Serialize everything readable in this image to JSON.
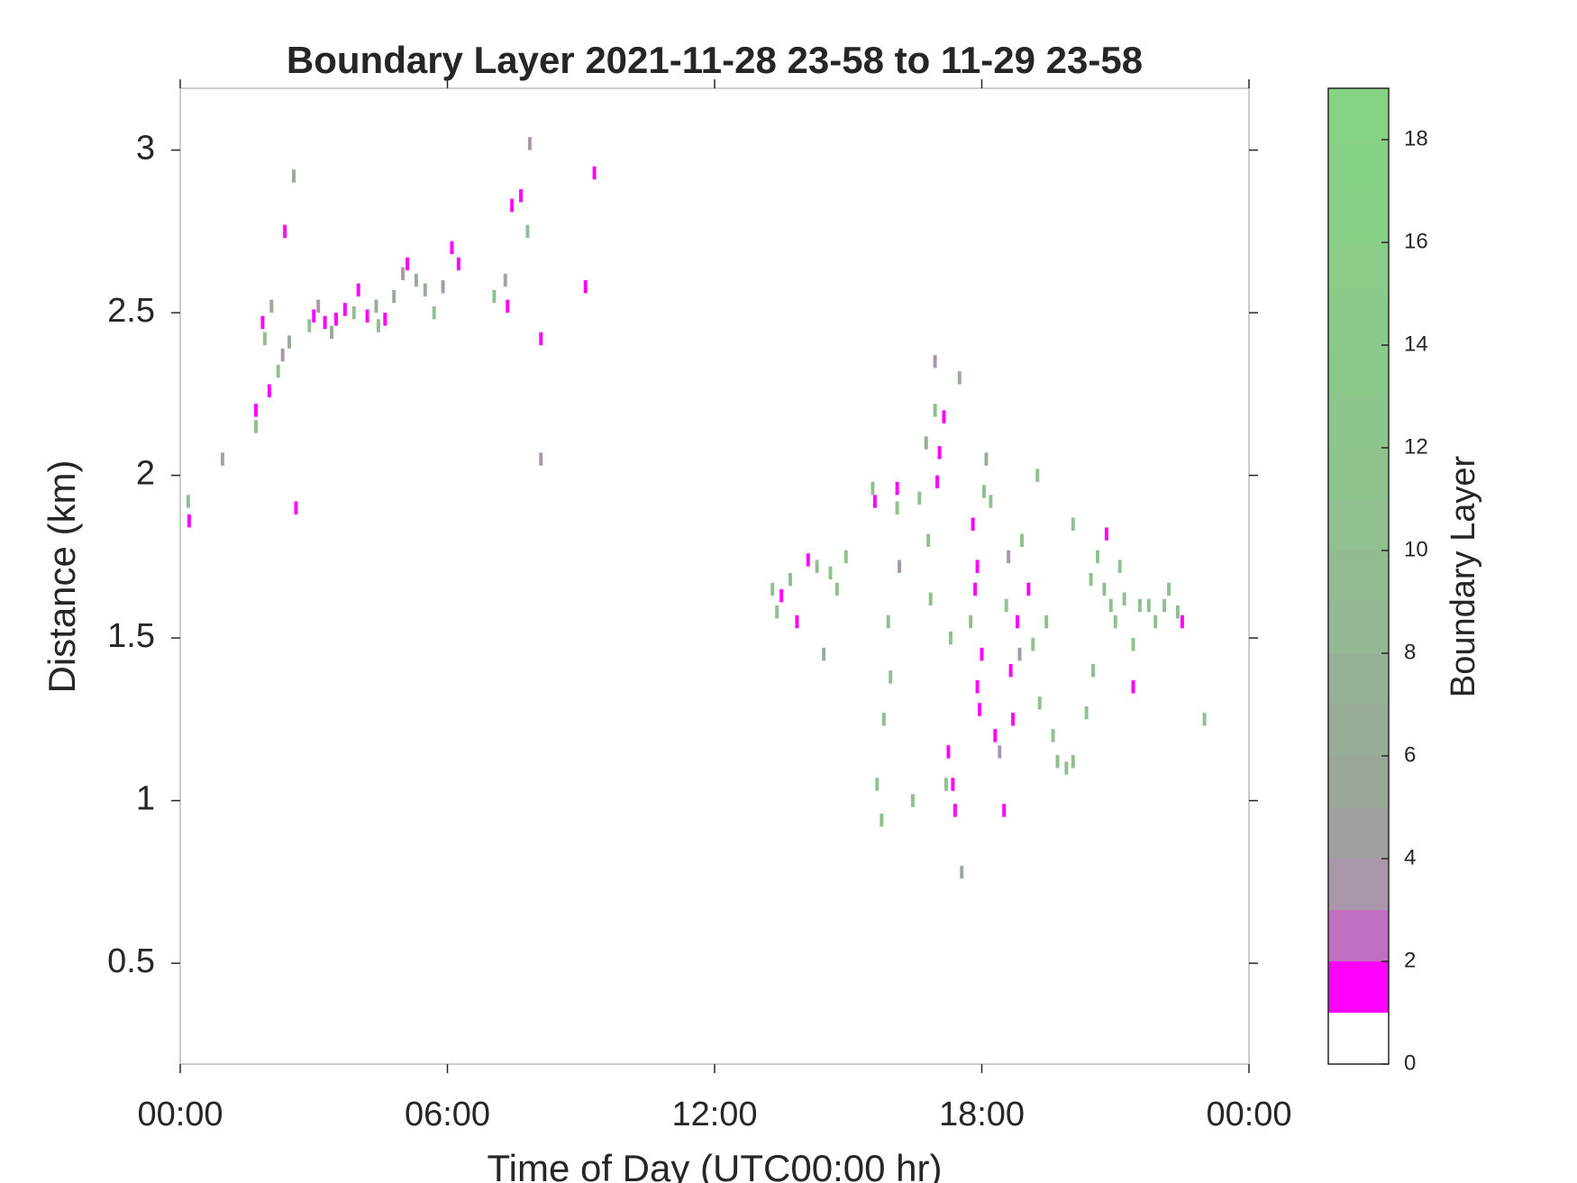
{
  "chart_data": {
    "type": "heatmap-scatter",
    "title": "Boundary Layer 2021-11-28 23-58 to 11-29 23-58",
    "xlabel": "Time of Day (UTC00:00 hr)",
    "ylabel": "Distance (km)",
    "colorbar_label": "Boundary Layer",
    "xlim": [
      0,
      24
    ],
    "xticks": [
      {
        "value": 0,
        "label": "00:00"
      },
      {
        "value": 6,
        "label": "06:00"
      },
      {
        "value": 12,
        "label": "12:00"
      },
      {
        "value": 18,
        "label": "18:00"
      },
      {
        "value": 24,
        "label": "00:00"
      }
    ],
    "ylim": [
      0.19,
      3.19
    ],
    "yticks": [
      0.5,
      1,
      1.5,
      2,
      2.5,
      3
    ],
    "clim": [
      0,
      19
    ],
    "cticks": [
      0,
      2,
      4,
      6,
      8,
      10,
      12,
      14,
      16,
      18
    ],
    "colormap": [
      "#ffffff",
      "#ff00ff",
      "#c070c0",
      "#aa98aa",
      "#a0a0a0",
      "#9aa89a",
      "#98ad98",
      "#96b296",
      "#94b794",
      "#92bb92",
      "#90bf90",
      "#8ec38e",
      "#8cc68c",
      "#8bc98b",
      "#8acb8a",
      "#89cd89",
      "#88cf88",
      "#87d187",
      "#86d386"
    ],
    "x": [
      0.18,
      0.2,
      0.95,
      1.7,
      1.7,
      1.85,
      1.9,
      2.0,
      2.05,
      2.2,
      2.3,
      2.35,
      2.45,
      2.55,
      2.6,
      2.9,
      3.0,
      3.1,
      3.25,
      3.4,
      3.5,
      3.7,
      3.9,
      4.0,
      4.2,
      4.4,
      4.45,
      4.6,
      4.8,
      5.0,
      5.1,
      5.3,
      5.5,
      5.7,
      5.9,
      6.1,
      6.25,
      7.05,
      7.3,
      7.35,
      7.45,
      7.65,
      7.8,
      7.85,
      8.1,
      8.1,
      9.1,
      9.3,
      13.3,
      13.4,
      13.5,
      13.7,
      13.85,
      14.1,
      14.3,
      14.45,
      14.6,
      14.75,
      14.95,
      15.55,
      15.6,
      15.65,
      15.75,
      15.8,
      15.9,
      15.95,
      16.1,
      16.1,
      16.15,
      16.45,
      16.6,
      16.75,
      16.8,
      16.85,
      16.95,
      16.95,
      17.0,
      17.05,
      17.15,
      17.2,
      17.25,
      17.35,
      17.3,
      17.4,
      17.5,
      17.55,
      17.75,
      17.8,
      17.85,
      17.9,
      17.9,
      17.95,
      18.0,
      18.05,
      18.1,
      18.2,
      18.3,
      18.4,
      18.5,
      18.55,
      18.6,
      18.65,
      18.7,
      18.8,
      18.85,
      18.9,
      19.05,
      19.15,
      19.25,
      19.3,
      19.45,
      19.6,
      19.7,
      19.9,
      20.05,
      20.05,
      20.35,
      20.45,
      20.5,
      20.6,
      20.75,
      20.8,
      20.9,
      21.0,
      21.1,
      21.2,
      21.4,
      21.4,
      21.55,
      21.75,
      21.9,
      22.1,
      22.2,
      22.4,
      22.5,
      23.0
    ],
    "y": [
      1.92,
      1.86,
      2.05,
      2.15,
      2.2,
      2.47,
      2.42,
      2.26,
      2.52,
      2.32,
      2.37,
      2.75,
      2.41,
      2.92,
      1.9,
      2.46,
      2.49,
      2.52,
      2.47,
      2.44,
      2.48,
      2.51,
      2.5,
      2.57,
      2.49,
      2.52,
      2.46,
      2.48,
      2.55,
      2.62,
      2.65,
      2.6,
      2.57,
      2.5,
      2.58,
      2.7,
      2.65,
      2.55,
      2.6,
      2.52,
      2.83,
      2.86,
      2.75,
      3.02,
      2.42,
      2.05,
      2.58,
      2.93,
      1.65,
      1.58,
      1.63,
      1.68,
      1.55,
      1.74,
      1.72,
      1.45,
      1.7,
      1.65,
      1.75,
      1.96,
      1.92,
      1.05,
      0.94,
      1.25,
      1.55,
      1.38,
      1.9,
      1.96,
      1.72,
      1.0,
      1.93,
      2.1,
      1.8,
      1.62,
      2.2,
      2.35,
      1.98,
      2.07,
      2.18,
      1.05,
      1.15,
      1.05,
      1.5,
      0.97,
      2.3,
      0.78,
      1.55,
      1.85,
      1.65,
      1.72,
      1.35,
      1.28,
      1.45,
      1.95,
      2.05,
      1.92,
      1.2,
      1.15,
      0.97,
      1.6,
      1.75,
      1.4,
      1.25,
      1.55,
      1.45,
      1.8,
      1.65,
      1.48,
      2.0,
      1.3,
      1.55,
      1.2,
      1.12,
      1.1,
      1.12,
      1.85,
      1.27,
      1.68,
      1.4,
      1.75,
      1.65,
      1.82,
      1.6,
      1.55,
      1.72,
      1.62,
      1.48,
      1.35,
      1.6,
      1.6,
      1.55,
      1.6,
      1.65,
      1.58,
      1.55,
      1.25
    ],
    "values": [
      10,
      1,
      6,
      10,
      1,
      1,
      10,
      1,
      6,
      10,
      3,
      1,
      6,
      6,
      1,
      10,
      1,
      3,
      1,
      6,
      1,
      1,
      10,
      1,
      1,
      6,
      10,
      1,
      6,
      3,
      1,
      6,
      6,
      10,
      3,
      1,
      1,
      10,
      6,
      1,
      1,
      1,
      10,
      3,
      1,
      3,
      1,
      1,
      10,
      10,
      1,
      10,
      1,
      1,
      10,
      6,
      10,
      10,
      10,
      10,
      1,
      10,
      10,
      10,
      10,
      10,
      10,
      1,
      3,
      10,
      10,
      6,
      10,
      10,
      10,
      3,
      1,
      1,
      1,
      10,
      1,
      1,
      10,
      1,
      6,
      6,
      10,
      1,
      1,
      1,
      1,
      1,
      1,
      10,
      6,
      10,
      1,
      3,
      1,
      10,
      3,
      1,
      1,
      1,
      3,
      10,
      1,
      10,
      10,
      10,
      10,
      10,
      10,
      10,
      10,
      10,
      10,
      10,
      10,
      10,
      10,
      1,
      10,
      10,
      10,
      10,
      10,
      1,
      10,
      10,
      10,
      10,
      10,
      10,
      1,
      10
    ]
  }
}
